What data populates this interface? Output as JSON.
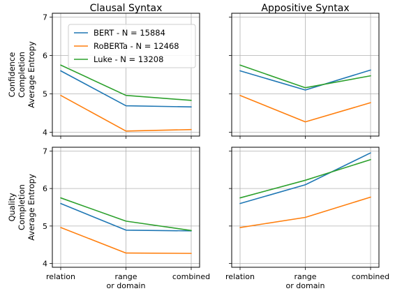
{
  "chart_data": {
    "type": "line",
    "categories": [
      "relation",
      "range or domain",
      "combined"
    ],
    "category_tick_lines": [
      [
        "relation"
      ],
      [
        "range",
        "or domain"
      ],
      [
        "combined"
      ]
    ],
    "ylim": [
      3.9,
      7.1
    ],
    "yticks": [
      4,
      5,
      6,
      7
    ],
    "grid": true,
    "legend_position": "top-left of first panel",
    "column_titles": [
      "Clausal Syntax",
      "Appositive Syntax"
    ],
    "row_labels": [
      [
        "Confidence",
        "Completion",
        "Average Entropy"
      ],
      [
        "Quality",
        "Completion",
        "Average Entropy"
      ]
    ],
    "legend": [
      {
        "label": "BERT - N = 15884",
        "color": "#1f77b4"
      },
      {
        "label": "RoBERTa - N = 12468",
        "color": "#ff7f0e"
      },
      {
        "label": "Luke - N = 13208",
        "color": "#2ca02c"
      }
    ],
    "panels": [
      {
        "row": 0,
        "col": 0,
        "series": [
          {
            "name": "BERT",
            "color": "#1f77b4",
            "values": [
              5.6,
              4.69,
              4.66
            ]
          },
          {
            "name": "RoBERTa",
            "color": "#ff7f0e",
            "values": [
              4.96,
              4.03,
              4.07
            ]
          },
          {
            "name": "Luke",
            "color": "#2ca02c",
            "values": [
              5.75,
              4.96,
              4.83
            ]
          }
        ]
      },
      {
        "row": 0,
        "col": 1,
        "series": [
          {
            "name": "BERT",
            "color": "#1f77b4",
            "values": [
              5.6,
              5.1,
              5.62
            ]
          },
          {
            "name": "RoBERTa",
            "color": "#ff7f0e",
            "values": [
              4.96,
              4.27,
              4.77
            ]
          },
          {
            "name": "Luke",
            "color": "#2ca02c",
            "values": [
              5.75,
              5.16,
              5.47
            ]
          }
        ]
      },
      {
        "row": 1,
        "col": 0,
        "series": [
          {
            "name": "BERT",
            "color": "#1f77b4",
            "values": [
              5.6,
              4.89,
              4.87
            ]
          },
          {
            "name": "RoBERTa",
            "color": "#ff7f0e",
            "values": [
              4.96,
              4.28,
              4.27
            ]
          },
          {
            "name": "Luke",
            "color": "#2ca02c",
            "values": [
              5.75,
              5.13,
              4.88
            ]
          }
        ]
      },
      {
        "row": 1,
        "col": 1,
        "series": [
          {
            "name": "BERT",
            "color": "#1f77b4",
            "values": [
              5.6,
              6.1,
              6.95
            ]
          },
          {
            "name": "RoBERTa",
            "color": "#ff7f0e",
            "values": [
              4.96,
              5.23,
              5.77
            ]
          },
          {
            "name": "Luke",
            "color": "#2ca02c",
            "values": [
              5.75,
              6.22,
              6.77
            ]
          }
        ]
      }
    ]
  }
}
